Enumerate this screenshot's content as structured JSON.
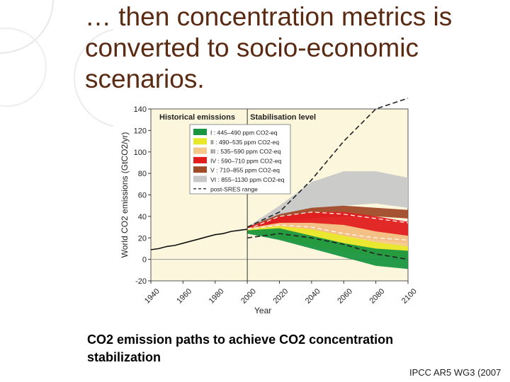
{
  "slide": {
    "title": "… then concentration metrics is converted to socio-economic scenarios.",
    "caption": "CO2 emission paths to achieve CO2 concentration stabilization",
    "source": "IPCC AR5 WG3 (2007"
  },
  "chart_data": {
    "type": "area",
    "xlabel": "Year",
    "ylabel": "World CO2 emissions (GtCO2/yr)",
    "xlim": [
      1940,
      2100
    ],
    "ylim": [
      -20,
      140
    ],
    "x_ticks": [
      1940,
      1960,
      1980,
      2000,
      2020,
      2040,
      2060,
      2080,
      2100
    ],
    "y_ticks": [
      -20,
      0,
      20,
      40,
      60,
      80,
      100,
      120,
      140
    ],
    "section_labels": [
      "Historical emissions",
      "Stabilisation level"
    ],
    "legend": [
      {
        "label": "I : 445–490 ppm CO2-eq",
        "color": "#1a9640"
      },
      {
        "label": "II : 490–535 ppm CO2-eq",
        "color": "#e8e82a"
      },
      {
        "label": "III : 535–590 ppm CO2-eq",
        "color": "#f5c88a"
      },
      {
        "label": "IV : 590–710 ppm CO2-eq",
        "color": "#e21d1d"
      },
      {
        "label": "V : 710–855 ppm CO2-eq",
        "color": "#a04a28"
      },
      {
        "label": "VI : 855–1130 ppm CO2-eq",
        "color": "#c8c8c8"
      },
      {
        "label": "post-SRES range",
        "color": "#333333"
      }
    ],
    "historical": {
      "x": [
        1940,
        1945,
        1950,
        1955,
        1960,
        1965,
        1970,
        1975,
        1980,
        1985,
        1990,
        1995,
        2000
      ],
      "y": [
        9,
        10,
        12,
        13,
        15,
        17,
        19,
        21,
        23,
        24,
        26,
        27,
        28
      ]
    },
    "bands": [
      {
        "name": "VI",
        "x": [
          2000,
          2020,
          2040,
          2060,
          2080,
          2100
        ],
        "low": [
          28,
          38,
          45,
          50,
          52,
          48
        ],
        "high": [
          30,
          50,
          72,
          82,
          82,
          76
        ]
      },
      {
        "name": "V",
        "x": [
          2000,
          2020,
          2040,
          2060,
          2080,
          2100
        ],
        "low": [
          28,
          34,
          38,
          40,
          40,
          38
        ],
        "high": [
          30,
          42,
          48,
          50,
          48,
          46
        ]
      },
      {
        "name": "IV",
        "x": [
          2000,
          2020,
          2040,
          2060,
          2080,
          2100
        ],
        "low": [
          27,
          26,
          25,
          22,
          18,
          15
        ],
        "high": [
          30,
          40,
          44,
          44,
          40,
          35
        ]
      },
      {
        "name": "III",
        "x": [
          2000,
          2020,
          2040,
          2060,
          2080,
          2100
        ],
        "low": [
          26,
          23,
          18,
          12,
          8,
          6
        ],
        "high": [
          29,
          34,
          34,
          32,
          26,
          22
        ]
      },
      {
        "name": "II",
        "x": [
          2000,
          2020,
          2040,
          2060,
          2080,
          2100
        ],
        "low": [
          25,
          20,
          13,
          7,
          3,
          1
        ],
        "high": [
          28,
          31,
          28,
          22,
          16,
          12
        ]
      },
      {
        "name": "I",
        "x": [
          2000,
          2020,
          2040,
          2060,
          2080,
          2100
        ],
        "low": [
          24,
          18,
          10,
          2,
          -6,
          -9
        ],
        "high": [
          27,
          29,
          22,
          15,
          10,
          8
        ]
      }
    ],
    "post_sres_upper": {
      "x": [
        2000,
        2020,
        2040,
        2060,
        2080,
        2100
      ],
      "y": [
        30,
        44,
        74,
        110,
        140,
        150
      ]
    },
    "post_sres_lower": {
      "x": [
        2000,
        2020,
        2040,
        2060,
        2080,
        2100
      ],
      "y": [
        20,
        24,
        20,
        14,
        5,
        0
      ]
    },
    "median_lines": [
      {
        "x": [
          2000,
          2020,
          2040,
          2060,
          2080,
          2100
        ],
        "y": [
          28,
          40,
          44,
          42,
          38,
          34
        ]
      },
      {
        "x": [
          2000,
          2020,
          2040,
          2060,
          2080,
          2100
        ],
        "y": [
          28,
          32,
          30,
          24,
          20,
          18
        ]
      }
    ]
  }
}
